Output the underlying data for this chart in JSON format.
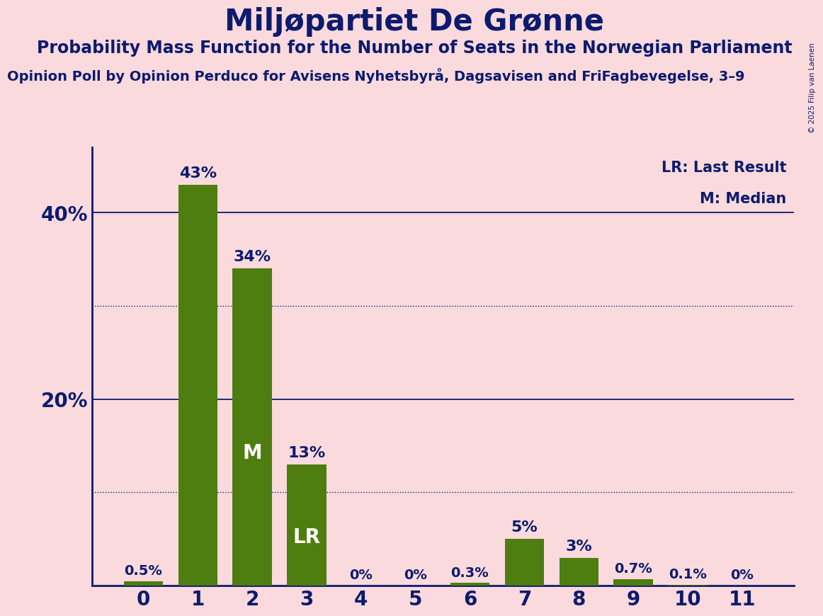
{
  "title": "Miljøpartiet De Grønne",
  "subtitle": "Probability Mass Function for the Number of Seats in the Norwegian Parliament",
  "source": "Opinion Poll by Opinion Perduco for Avisens Nyhetsbyrå, Dagsavisen and FriFagbevegelse, 3–9",
  "copyright": "© 2025 Filip van Laenen",
  "categories": [
    0,
    1,
    2,
    3,
    4,
    5,
    6,
    7,
    8,
    9,
    10,
    11
  ],
  "values": [
    0.5,
    43,
    34,
    13,
    0,
    0,
    0.3,
    5,
    3,
    0.7,
    0.1,
    0
  ],
  "bar_color": "#4e7d10",
  "background_color": "#fadadd",
  "title_color": "#0d1b6e",
  "label_color": "#0d1b6e",
  "ytick_labels": [
    "",
    "20%",
    "40%"
  ],
  "dotted_lines": [
    10,
    30
  ],
  "solid_lines": [
    20,
    40
  ],
  "ylim": [
    0,
    47
  ],
  "median_bar": 2,
  "lr_bar": 3,
  "legend_lr": "LR: Last Result",
  "legend_m": "M: Median",
  "title_fontsize": 30,
  "subtitle_fontsize": 17,
  "source_fontsize": 14,
  "axis_label_fontsize": 20,
  "bar_label_fontsize_large": 16,
  "bar_label_fontsize_small": 14,
  "inside_label_fontsize": 20
}
